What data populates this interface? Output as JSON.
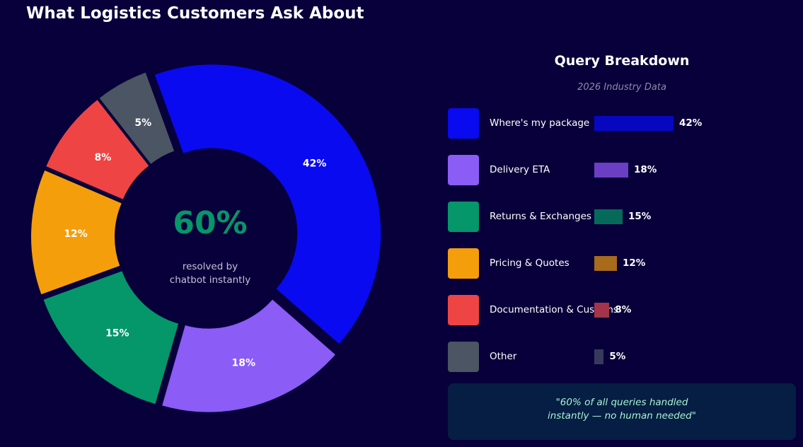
{
  "chart_data": {
    "type": "pie",
    "title": "What Logistics Customers Ask About",
    "categories": [
      "Where's my package",
      "Delivery ETA",
      "Returns & Exchanges",
      "Pricing & Quotes",
      "Documentation & Customs",
      "Other"
    ],
    "values": [
      42,
      18,
      15,
      12,
      8,
      5
    ],
    "labels": [
      "42%",
      "18%",
      "15%",
      "12%",
      "8%",
      "5%"
    ],
    "colors": [
      "#0a0af0",
      "#8b5cf6",
      "#059669",
      "#f59e0b",
      "#ef4444",
      "#4b5563"
    ],
    "center": {
      "value": "60%",
      "caption": "resolved by\nchatbot instantly",
      "color": "#059669"
    }
  },
  "panel": {
    "title": "Query Breakdown",
    "subtitle": "2026 Industry Data",
    "legend": [
      {
        "name": "Where's my package",
        "value": 42,
        "pct": "42%",
        "swatch": "#0a0af0",
        "bar": "#0707c2"
      },
      {
        "name": "Delivery ETA",
        "value": 18,
        "pct": "18%",
        "swatch": "#8b5cf6",
        "bar": "#6b3fc4"
      },
      {
        "name": "Returns & Exchanges",
        "value": 15,
        "pct": "15%",
        "swatch": "#059669",
        "bar": "#066a5a"
      },
      {
        "name": "Pricing & Quotes",
        "value": 12,
        "pct": "12%",
        "swatch": "#f59e0b",
        "bar": "#a86a1b"
      },
      {
        "name": "Documentation & Customs",
        "value": 8,
        "pct": "8%",
        "swatch": "#ef4444",
        "bar": "#a3344a"
      },
      {
        "name": "Other",
        "value": 5,
        "pct": "5%",
        "swatch": "#4b5563",
        "bar": "#373a5c"
      }
    ],
    "quote": "\"60% of all queries handled\ninstantly — no human needed\""
  }
}
